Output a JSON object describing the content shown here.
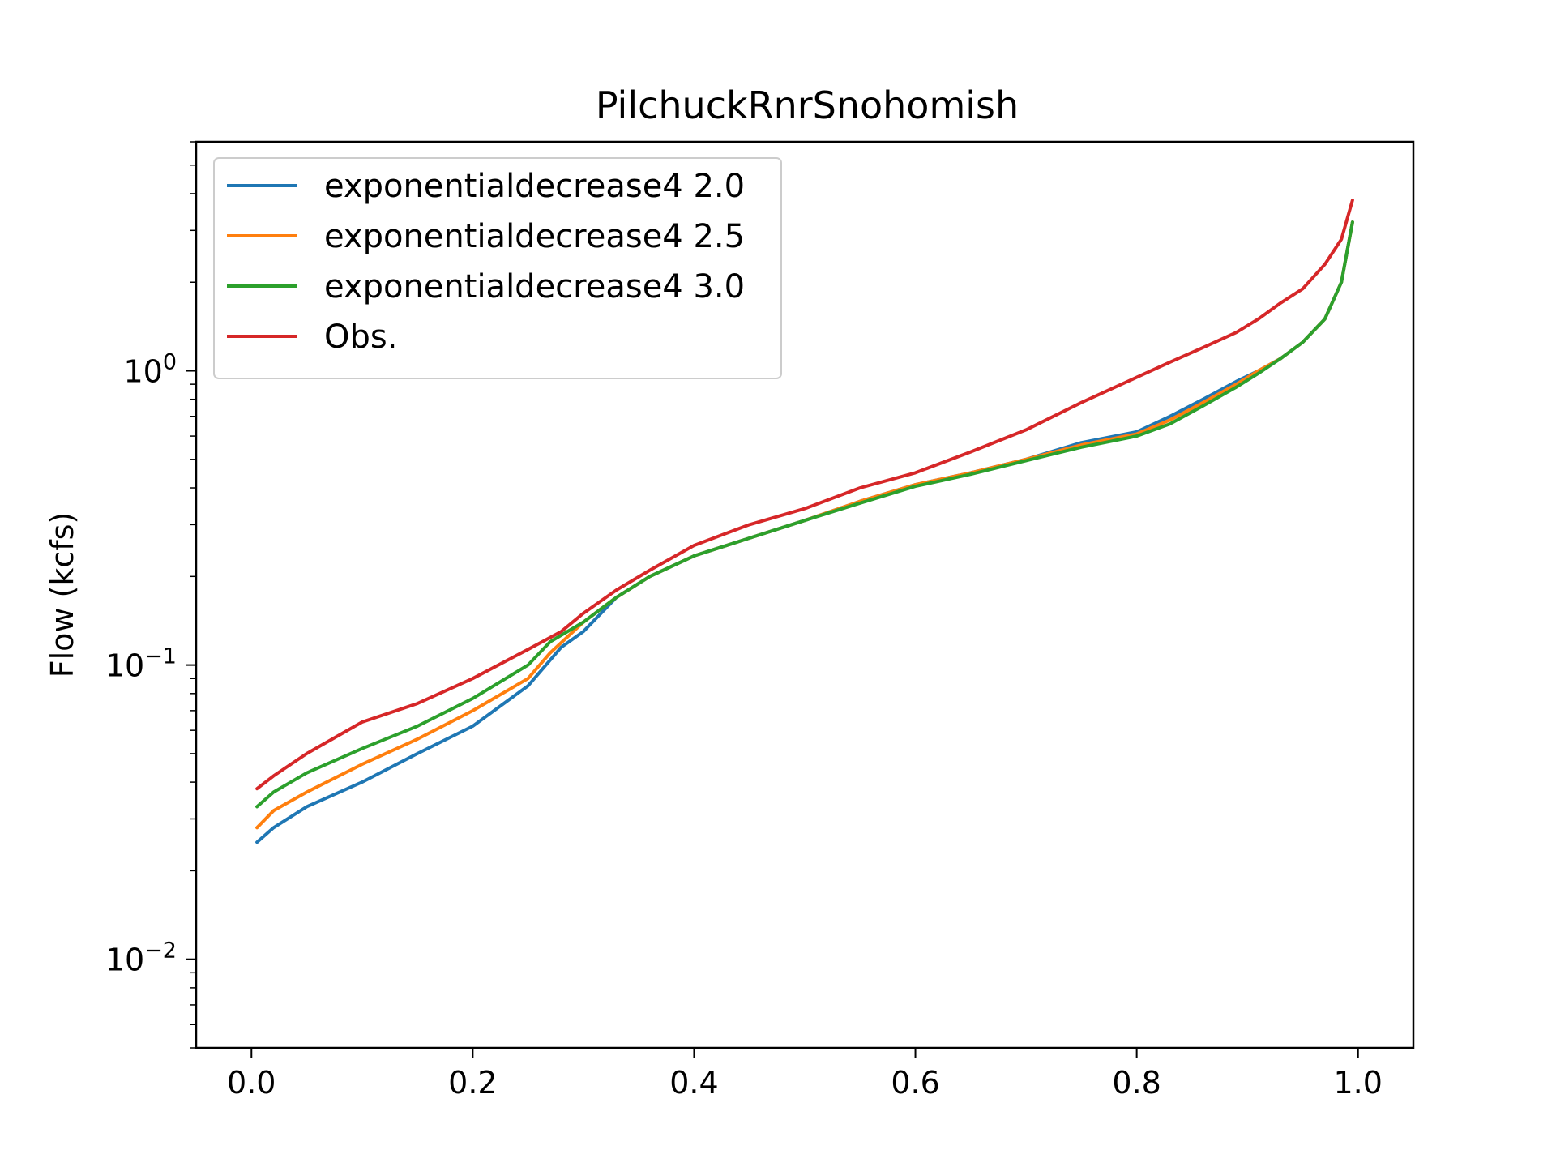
{
  "chart_data": {
    "type": "line",
    "title": "PilchuckRnrSnohomish",
    "xlabel": "",
    "ylabel": "Flow (kcfs)",
    "yscale": "log",
    "xlim": [
      -0.05,
      1.05
    ],
    "ylim": [
      0.005,
      6
    ],
    "xticks": [
      0.0,
      0.2,
      0.4,
      0.6,
      0.8,
      1.0
    ],
    "xtick_labels": [
      "0.0",
      "0.2",
      "0.4",
      "0.6",
      "0.8",
      "1.0"
    ],
    "yticks": [
      1,
      0.1,
      0.01
    ],
    "ytick_labels": [
      {
        "base": "10",
        "exp": "0"
      },
      {
        "base": "10",
        "exp": "−1"
      },
      {
        "base": "10",
        "exp": "−2"
      }
    ],
    "grid": false,
    "legend_position": "top-left",
    "series": [
      {
        "name": "exponentialdecrease4 2.0",
        "color": "#1f77b4",
        "x": [
          0.005,
          0.02,
          0.05,
          0.1,
          0.15,
          0.2,
          0.25,
          0.28,
          0.3,
          0.33,
          0.36,
          0.4,
          0.45,
          0.5,
          0.55,
          0.6,
          0.65,
          0.7,
          0.75,
          0.8,
          0.83,
          0.86,
          0.89,
          0.91,
          0.93,
          0.95,
          0.97,
          0.985,
          0.995
        ],
        "y": [
          0.025,
          0.028,
          0.033,
          0.04,
          0.05,
          0.062,
          0.085,
          0.115,
          0.13,
          0.17,
          0.2,
          0.235,
          0.27,
          0.31,
          0.36,
          0.41,
          0.45,
          0.5,
          0.57,
          0.62,
          0.7,
          0.8,
          0.92,
          1.0,
          1.1,
          1.25,
          1.5,
          2.0,
          3.2
        ]
      },
      {
        "name": "exponentialdecrease4 2.5",
        "color": "#ff7f0e",
        "x": [
          0.005,
          0.02,
          0.05,
          0.1,
          0.15,
          0.2,
          0.25,
          0.27,
          0.3,
          0.33,
          0.36,
          0.4,
          0.45,
          0.5,
          0.55,
          0.6,
          0.65,
          0.7,
          0.75,
          0.8,
          0.83,
          0.86,
          0.89,
          0.91,
          0.93,
          0.95,
          0.97,
          0.985,
          0.995
        ],
        "y": [
          0.028,
          0.032,
          0.037,
          0.046,
          0.056,
          0.07,
          0.09,
          0.11,
          0.14,
          0.17,
          0.2,
          0.235,
          0.27,
          0.31,
          0.36,
          0.41,
          0.45,
          0.5,
          0.56,
          0.61,
          0.68,
          0.78,
          0.9,
          1.0,
          1.1,
          1.25,
          1.5,
          2.0,
          3.2
        ]
      },
      {
        "name": "exponentialdecrease4 3.0",
        "color": "#2ca02c",
        "x": [
          0.005,
          0.02,
          0.05,
          0.1,
          0.15,
          0.2,
          0.25,
          0.27,
          0.3,
          0.33,
          0.36,
          0.4,
          0.45,
          0.5,
          0.55,
          0.6,
          0.65,
          0.7,
          0.75,
          0.8,
          0.83,
          0.86,
          0.89,
          0.91,
          0.93,
          0.95,
          0.97,
          0.985,
          0.995
        ],
        "y": [
          0.033,
          0.037,
          0.043,
          0.052,
          0.062,
          0.077,
          0.1,
          0.12,
          0.14,
          0.17,
          0.2,
          0.235,
          0.27,
          0.31,
          0.355,
          0.405,
          0.445,
          0.495,
          0.55,
          0.6,
          0.66,
          0.76,
          0.88,
          0.98,
          1.1,
          1.25,
          1.5,
          2.0,
          3.2
        ]
      },
      {
        "name": "Obs.",
        "color": "#d62728",
        "x": [
          0.005,
          0.02,
          0.05,
          0.1,
          0.15,
          0.2,
          0.25,
          0.28,
          0.3,
          0.33,
          0.36,
          0.4,
          0.45,
          0.5,
          0.55,
          0.6,
          0.65,
          0.7,
          0.75,
          0.8,
          0.83,
          0.86,
          0.89,
          0.91,
          0.93,
          0.95,
          0.97,
          0.985,
          0.995
        ],
        "y": [
          0.038,
          0.042,
          0.05,
          0.064,
          0.074,
          0.09,
          0.113,
          0.13,
          0.15,
          0.18,
          0.21,
          0.255,
          0.3,
          0.34,
          0.4,
          0.45,
          0.53,
          0.63,
          0.78,
          0.95,
          1.07,
          1.2,
          1.35,
          1.5,
          1.7,
          1.9,
          2.3,
          2.8,
          3.8
        ]
      }
    ]
  }
}
